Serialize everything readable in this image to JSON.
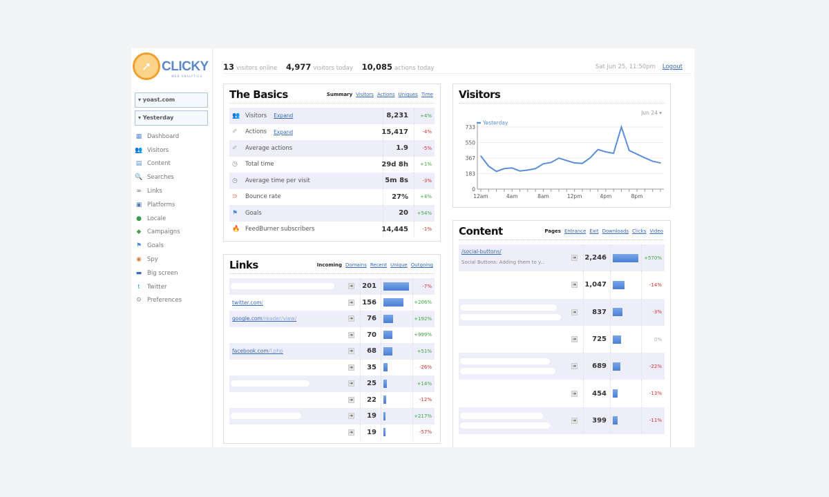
{
  "brand": {
    "name": "CLICKY",
    "tagline": "WEB ANALYTICS"
  },
  "sidebar": {
    "site_select": "▾ yoast.com",
    "date_select": "▾ Yesterday",
    "items": [
      {
        "label": "Dashboard",
        "icon": "dashboard-icon",
        "glyph": "▦",
        "color": "#5a8ad0"
      },
      {
        "label": "Visitors",
        "icon": "visitors-icon",
        "glyph": "👥",
        "color": "#e0a030"
      },
      {
        "label": "Content",
        "icon": "content-icon",
        "glyph": "▤",
        "color": "#5a8ad0"
      },
      {
        "label": "Searches",
        "icon": "search-icon",
        "glyph": "🔍",
        "color": "#5a8ad0"
      },
      {
        "label": "Links",
        "icon": "link-icon",
        "glyph": "∞",
        "color": "#666"
      },
      {
        "label": "Platforms",
        "icon": "monitor-icon",
        "glyph": "▣",
        "color": "#5a7ab0"
      },
      {
        "label": "Locale",
        "icon": "globe-icon",
        "glyph": "●",
        "color": "#3a9a50"
      },
      {
        "label": "Campaigns",
        "icon": "campaign-icon",
        "glyph": "◆",
        "color": "#4aa050"
      },
      {
        "label": "Goals",
        "icon": "goal-flag-icon",
        "glyph": "⚑",
        "color": "#4a8ad0"
      },
      {
        "label": "Spy",
        "icon": "eye-icon",
        "glyph": "◉",
        "color": "#d08040"
      },
      {
        "label": "Big screen",
        "icon": "tv-icon",
        "glyph": "▬",
        "color": "#3a6ab0"
      },
      {
        "label": "Twitter",
        "icon": "twitter-icon",
        "glyph": "t",
        "color": "#30a8e0"
      },
      {
        "label": "Preferences",
        "icon": "gear-icon",
        "glyph": "⚙",
        "color": "#999"
      }
    ]
  },
  "topbar": {
    "online_count": "13",
    "online_label": "visitors online",
    "today_count": "4,977",
    "today_label": "visitors today",
    "actions_count": "10,085",
    "actions_label": "actions today",
    "datetime": "Sat Jun 25, 11:50pm",
    "logout": "Logout"
  },
  "basics": {
    "title": "The Basics",
    "tabs": [
      {
        "label": "Summary",
        "active": true
      },
      {
        "label": "Visitors"
      },
      {
        "label": "Actions"
      },
      {
        "label": "Uniques"
      },
      {
        "label": "Time"
      }
    ],
    "rows": [
      {
        "label": "Visitors",
        "expand": "Expand",
        "value": "8,231",
        "change": "+4%",
        "icon": "visitors-icon",
        "glyph": "👥",
        "color": "#e0a030"
      },
      {
        "label": "Actions",
        "expand": "Expand",
        "value": "15,417",
        "change": "-4%",
        "icon": "actions-icon",
        "glyph": "✐",
        "color": "#aaa"
      },
      {
        "label": "Average actions",
        "value": "1.9",
        "change": "-5%",
        "icon": "actions-icon",
        "glyph": "✐",
        "color": "#aaa"
      },
      {
        "label": "Total time",
        "value": "29d 8h",
        "change": "+1%",
        "icon": "clock-icon",
        "glyph": "◷",
        "color": "#888"
      },
      {
        "label": "Average time per visit",
        "value": "5m 8s",
        "change": "-3%",
        "icon": "clock-icon",
        "glyph": "◷",
        "color": "#888"
      },
      {
        "label": "Bounce rate",
        "value": "27%",
        "change": "+4%",
        "icon": "bounce-icon",
        "glyph": "⊃",
        "color": "#e05020"
      },
      {
        "label": "Goals",
        "value": "20",
        "change": "+54%",
        "icon": "goal-flag-icon",
        "glyph": "⚑",
        "color": "#4a8ad0"
      },
      {
        "label": "FeedBurner subscribers",
        "value": "14,445",
        "change": "-1%",
        "icon": "feedburner-icon",
        "glyph": "🔥",
        "color": "#e04020"
      }
    ]
  },
  "visitors": {
    "title": "Visitors",
    "date_selector": "Jun 24 ▾",
    "chart_data": {
      "type": "line",
      "series": [
        {
          "name": "Yesterday",
          "color": "#5b8ddb",
          "values": [
            391,
            271,
            209,
            242,
            250,
            214,
            225,
            242,
            299,
            315,
            366,
            337,
            309,
            304,
            369,
            467,
            440,
            423,
            733,
            456,
            413,
            369,
            329,
            309
          ]
        }
      ],
      "x": [
        "12am",
        "1am",
        "2am",
        "3am",
        "4am",
        "5am",
        "6am",
        "7am",
        "8am",
        "9am",
        "10am",
        "11am",
        "12pm",
        "1pm",
        "2pm",
        "3pm",
        "4pm",
        "5pm",
        "6pm",
        "7pm",
        "8pm",
        "9pm",
        "10pm",
        "11pm"
      ],
      "x_tick_labels": [
        "12am",
        "4am",
        "8am",
        "12pm",
        "4pm",
        "8pm"
      ],
      "y_ticks": [
        0,
        183,
        367,
        550,
        733
      ],
      "ylim": [
        0,
        733
      ],
      "grid": true,
      "legend": "top-left"
    }
  },
  "links": {
    "title": "Links",
    "tabs": [
      {
        "label": "Incoming",
        "active": true
      },
      {
        "label": "Domains"
      },
      {
        "label": "Recent"
      },
      {
        "label": "Unique"
      },
      {
        "label": "Outgoing"
      }
    ],
    "rows": [
      {
        "domain": "",
        "path": "",
        "value": 201,
        "change": "-7%",
        "redacted": true
      },
      {
        "domain": "twitter.com",
        "path": "/",
        "value": 156,
        "change": "+206%"
      },
      {
        "domain": "google.com",
        "path": "/reader/view/",
        "value": 76,
        "change": "+192%"
      },
      {
        "domain": "",
        "path": "",
        "value": 70,
        "change": "+999%"
      },
      {
        "domain": "facebook.com",
        "path": "/l.php",
        "value": 68,
        "change": "+51%"
      },
      {
        "domain": "",
        "path": "",
        "value": 35,
        "change": "-26%"
      },
      {
        "domain": "",
        "path": "",
        "value": 25,
        "change": "+14%",
        "redacted": true
      },
      {
        "domain": "",
        "path": "",
        "value": 22,
        "change": "-12%"
      },
      {
        "domain": "",
        "path": "",
        "value": 19,
        "change": "+217%",
        "redacted": true
      },
      {
        "domain": "",
        "path": "",
        "value": 19,
        "change": "-57%"
      }
    ]
  },
  "content": {
    "title": "Content",
    "tabs": [
      {
        "label": "Pages",
        "active": true
      },
      {
        "label": "Entrance"
      },
      {
        "label": "Exit"
      },
      {
        "label": "Downloads"
      },
      {
        "label": "Clicks"
      },
      {
        "label": "Video"
      }
    ],
    "rows": [
      {
        "url": "/social-buttons/",
        "page_title": "Social Buttons: Adding them to y...",
        "value": "2,246",
        "num": 2246,
        "change": "+570%"
      },
      {
        "url": "",
        "page_title": "",
        "value": "1,047",
        "num": 1047,
        "change": "-14%"
      },
      {
        "url": "",
        "page_title": "",
        "value": "837",
        "num": 837,
        "change": "-3%",
        "redacted": true
      },
      {
        "url": "",
        "page_title": "",
        "value": "725",
        "num": 725,
        "change": "0%"
      },
      {
        "url": "",
        "page_title": "",
        "value": "689",
        "num": 689,
        "change": "-22%",
        "redacted": true
      },
      {
        "url": "",
        "page_title": "",
        "value": "454",
        "num": 454,
        "change": "-13%"
      },
      {
        "url": "",
        "page_title": "",
        "value": "399",
        "num": 399,
        "change": "-11%",
        "redacted": true
      }
    ]
  }
}
